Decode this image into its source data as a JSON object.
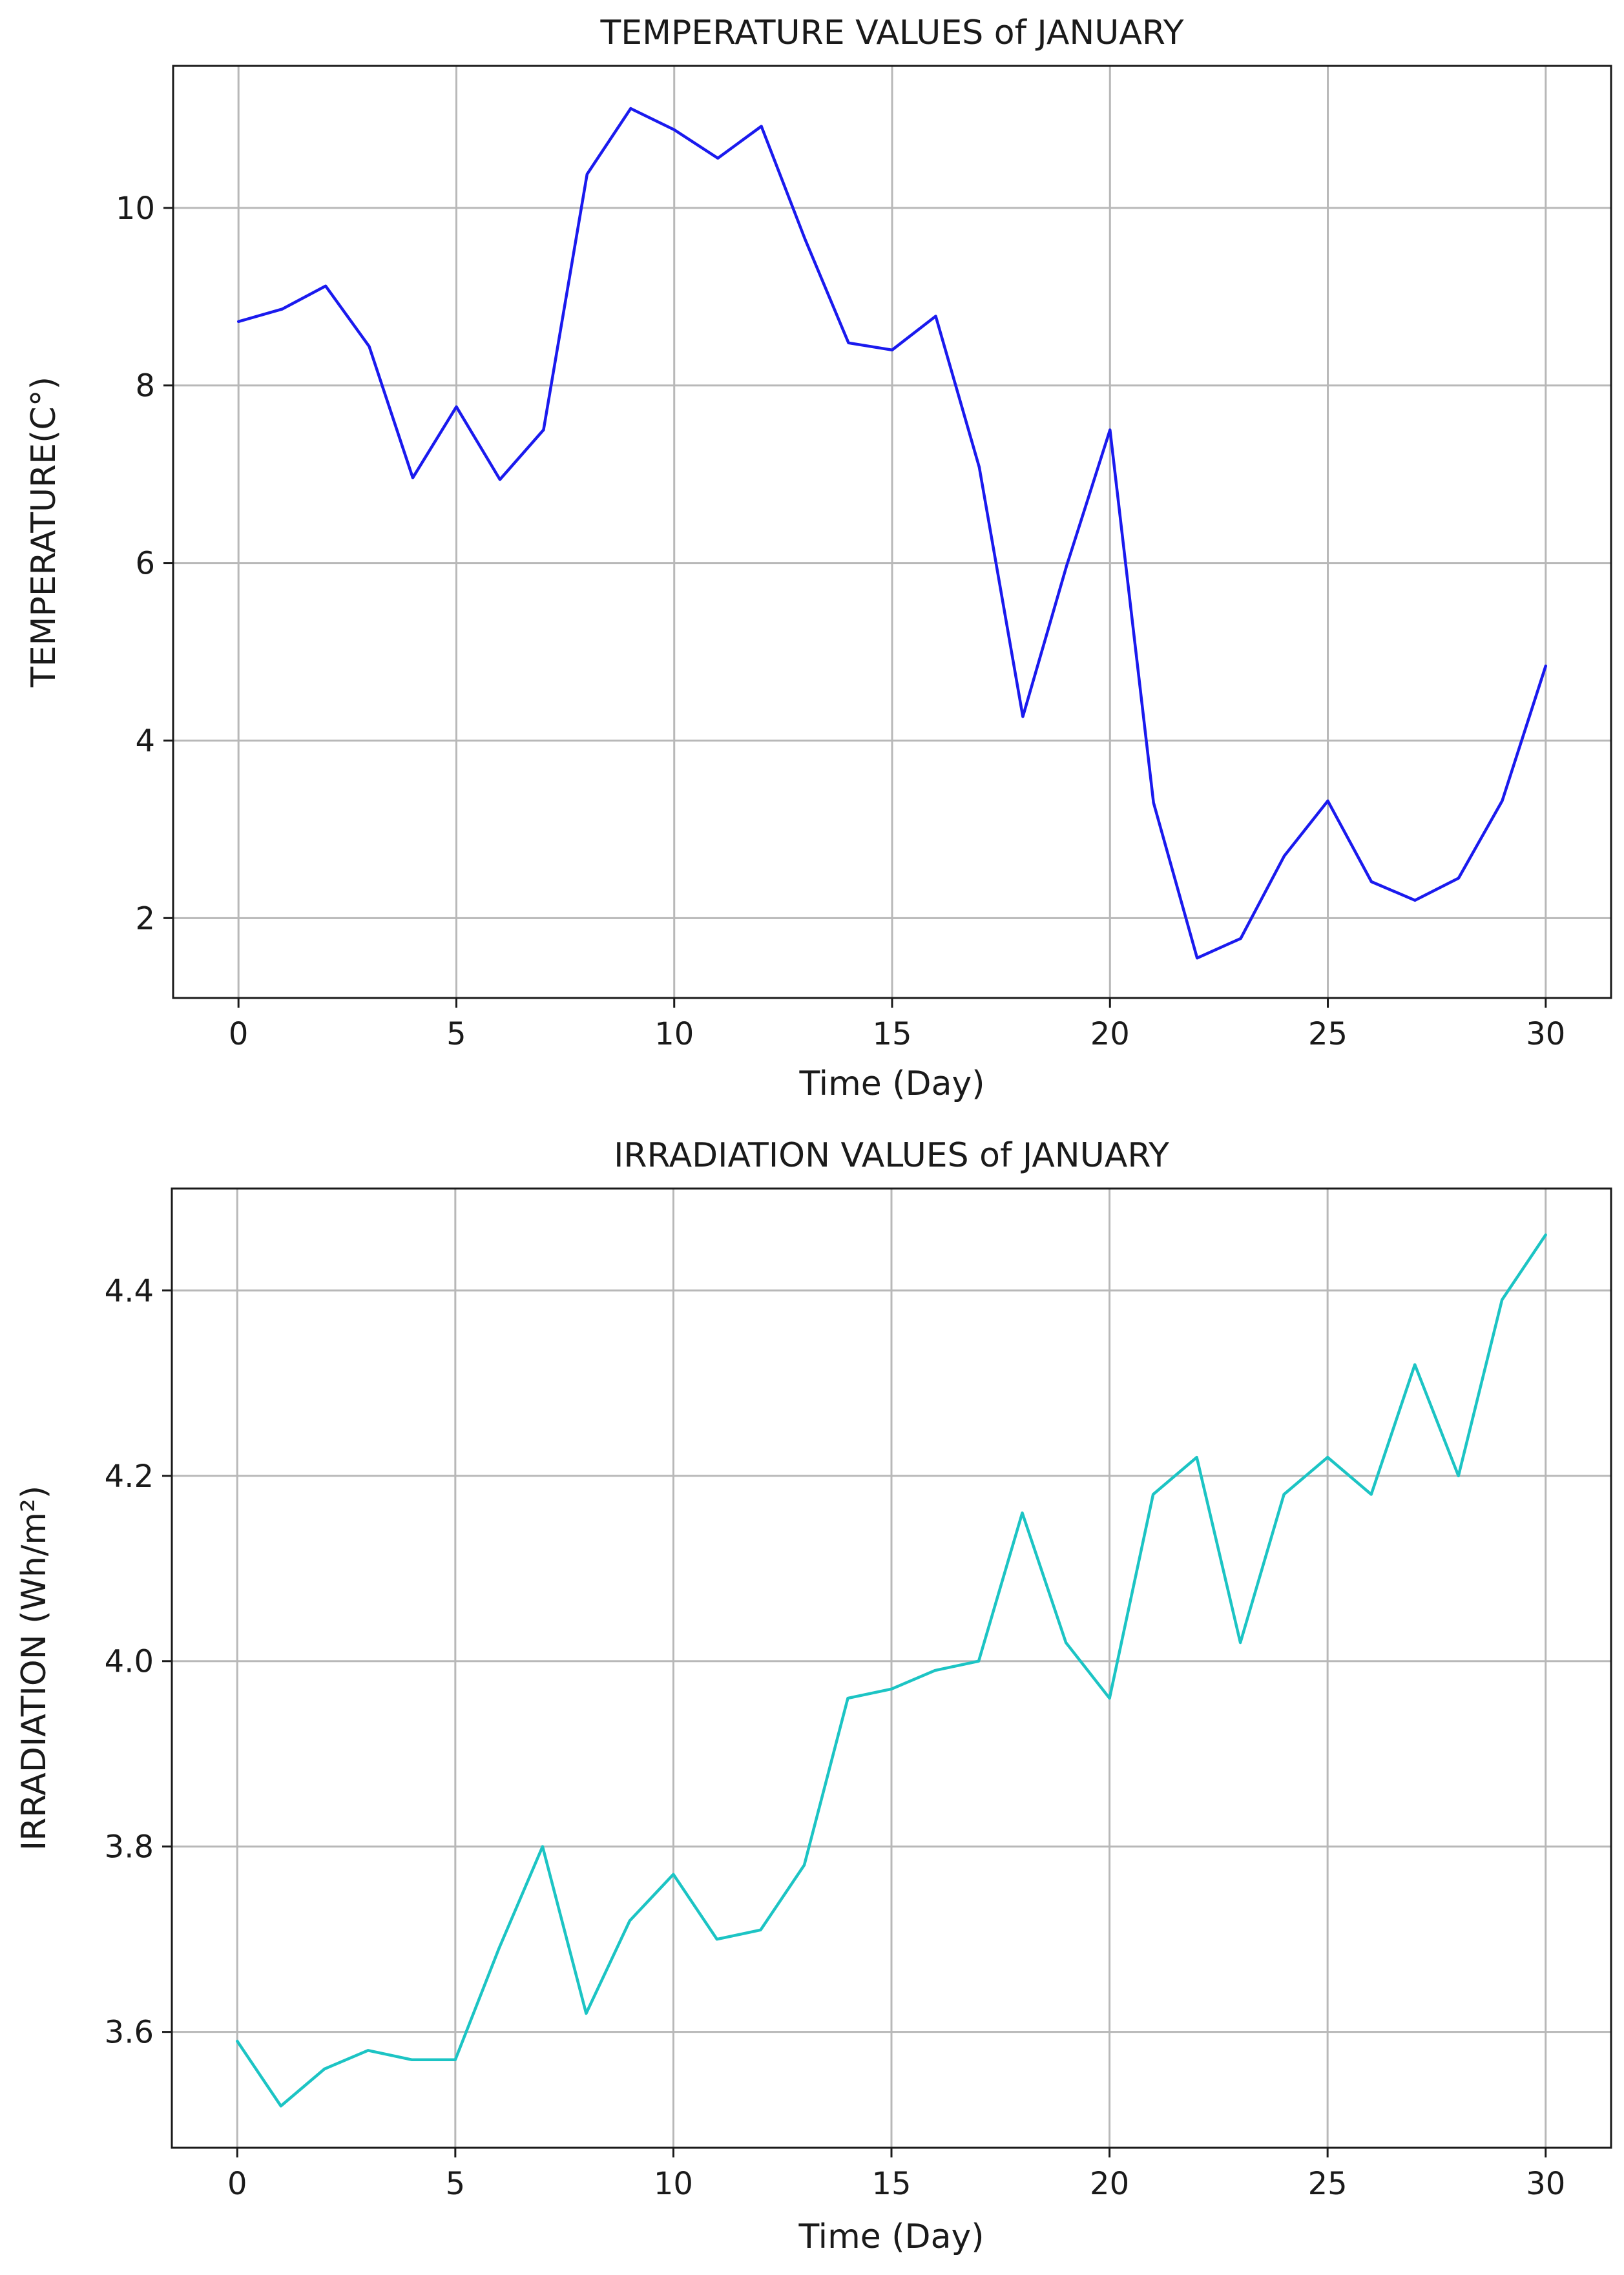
{
  "chart_data": [
    {
      "type": "line",
      "title": "TEMPERATURE VALUES of JANUARY",
      "xlabel": "Time (Day)",
      "ylabel": "TEMPERATURE(C°)",
      "xlim": [
        -1.5,
        31.5
      ],
      "ylim": [
        1.1,
        11.6
      ],
      "xticks": [
        0,
        5,
        10,
        15,
        20,
        25,
        30
      ],
      "yticks": [
        2,
        4,
        6,
        8,
        10
      ],
      "ytick_labels": [
        "2",
        "4",
        "6",
        "8",
        "10"
      ],
      "grid": true,
      "series": [
        {
          "name": "Temperature",
          "color": "#1a1aee",
          "x": [
            0,
            1,
            2,
            3,
            4,
            5,
            6,
            7,
            8,
            9,
            10,
            11,
            12,
            13,
            14,
            15,
            16,
            17,
            18,
            19,
            20,
            21,
            22,
            23,
            24,
            25,
            26,
            27,
            28,
            29,
            30
          ],
          "values": [
            8.72,
            8.86,
            9.12,
            8.44,
            6.96,
            7.76,
            6.94,
            7.5,
            10.38,
            11.12,
            10.88,
            10.56,
            10.92,
            9.65,
            8.48,
            8.4,
            8.78,
            7.08,
            4.27,
            5.96,
            7.5,
            3.3,
            1.55,
            1.77,
            2.7,
            3.32,
            2.41,
            2.2,
            2.45,
            3.32,
            4.84
          ]
        }
      ]
    },
    {
      "type": "line",
      "title": "IRRADIATION VALUES of JANUARY",
      "xlabel": "Time (Day)",
      "ylabel": "IRRADIATION (Wh/m²)",
      "xlim": [
        -1.5,
        31.5
      ],
      "ylim": [
        3.475,
        4.51
      ],
      "xticks": [
        0,
        5,
        10,
        15,
        20,
        25,
        30
      ],
      "yticks": [
        3.6,
        3.8,
        4.0,
        4.2,
        4.4
      ],
      "ytick_labels": [
        "3.6",
        "3.8",
        "4.0",
        "4.2",
        "4.4"
      ],
      "grid": true,
      "series": [
        {
          "name": "Irradiation",
          "color": "#1cc4c4",
          "x": [
            0,
            1,
            2,
            3,
            4,
            5,
            6,
            7,
            8,
            9,
            10,
            11,
            12,
            13,
            14,
            15,
            16,
            17,
            18,
            19,
            20,
            21,
            22,
            23,
            24,
            25,
            26,
            27,
            28,
            29,
            30
          ],
          "values": [
            3.59,
            3.52,
            3.56,
            3.58,
            3.57,
            3.57,
            3.69,
            3.8,
            3.62,
            3.72,
            3.77,
            3.7,
            3.71,
            3.78,
            3.96,
            3.97,
            3.99,
            4.0,
            4.16,
            4.02,
            3.96,
            4.18,
            4.22,
            4.02,
            4.18,
            4.22,
            4.18,
            4.32,
            4.2,
            4.39,
            4.46
          ]
        }
      ]
    }
  ]
}
